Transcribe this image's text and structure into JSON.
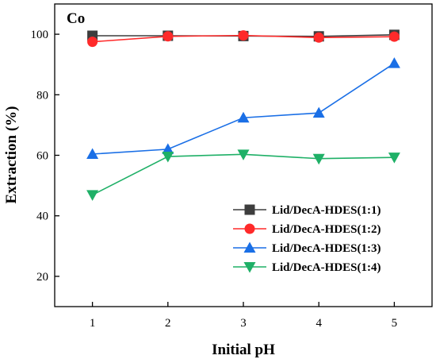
{
  "chart_data": {
    "type": "line",
    "panel_label": "Co",
    "xlabel": "Initial pH",
    "ylabel": "Extraction (%)",
    "x": [
      1,
      2,
      3,
      4,
      5
    ],
    "xlim": [
      0.5,
      5.5
    ],
    "ylim": [
      10,
      110
    ],
    "xticks": [
      1,
      2,
      3,
      4,
      5
    ],
    "yticks": [
      20,
      40,
      60,
      80,
      100
    ],
    "grid": false,
    "legend_position": "bottom-right",
    "series": [
      {
        "name": "Lid/DecA-HDES(1:1)",
        "marker": "square",
        "color": "#3d3d3d",
        "values": [
          99.5,
          99.5,
          99.4,
          99.3,
          99.8
        ]
      },
      {
        "name": "Lid/DecA-HDES(1:2)",
        "marker": "circle",
        "color": "#ff2a2a",
        "values": [
          97.5,
          99.3,
          99.6,
          98.9,
          99.2
        ]
      },
      {
        "name": "Lid/DecA-HDES(1:3)",
        "marker": "triangle-up",
        "color": "#1a6fe6",
        "values": [
          60.4,
          62.0,
          72.4,
          74.0,
          90.4
        ]
      },
      {
        "name": "Lid/DecA-HDES(1:4)",
        "marker": "triangle-down",
        "color": "#1fb067",
        "values": [
          46.9,
          59.6,
          60.3,
          58.9,
          59.3
        ]
      }
    ]
  }
}
